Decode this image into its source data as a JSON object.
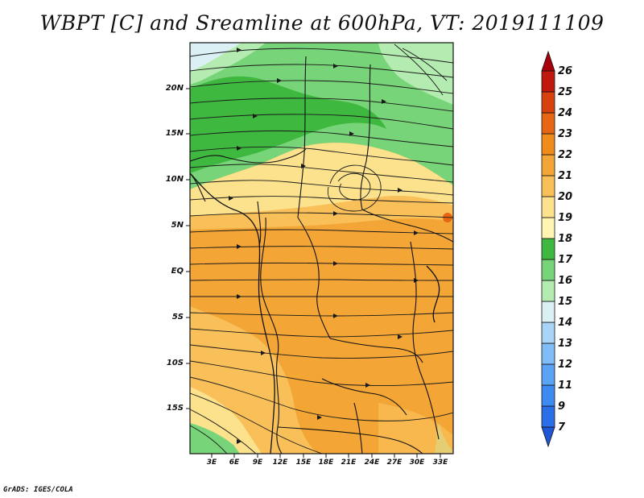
{
  "title": "WBPT [C] and Sreamline at 600hPa, VT: 2019111109",
  "footer": "GrADS: IGES/COLA",
  "map": {
    "lat_labels": [
      "20N",
      "15N",
      "10N",
      "5N",
      "EQ",
      "5S",
      "10S",
      "15S"
    ],
    "lon_labels": [
      "3E",
      "6E",
      "9E",
      "12E",
      "15E",
      "18E",
      "21E",
      "24E",
      "27E",
      "30E",
      "33E"
    ]
  },
  "colorbar": {
    "levels": [
      "7",
      "9",
      "11",
      "12",
      "13",
      "14",
      "15",
      "16",
      "17",
      "18",
      "19",
      "20",
      "21",
      "22",
      "23",
      "24",
      "25",
      "26"
    ],
    "colors": [
      "#1f57d6",
      "#2b6fe8",
      "#3c8af2",
      "#5aa3f5",
      "#80bdf7",
      "#aad4f7",
      "#daf0f5",
      "#b4ebb0",
      "#78d478",
      "#3fb840",
      "#fff5b0",
      "#fde28e",
      "#f9c05a",
      "#f3a535",
      "#f08c1a",
      "#e66614",
      "#d84010",
      "#c0180c",
      "#a8000a"
    ]
  }
}
